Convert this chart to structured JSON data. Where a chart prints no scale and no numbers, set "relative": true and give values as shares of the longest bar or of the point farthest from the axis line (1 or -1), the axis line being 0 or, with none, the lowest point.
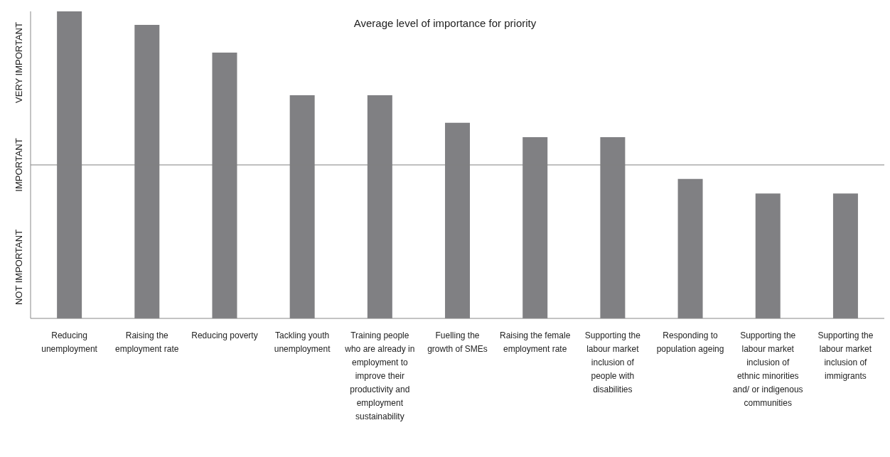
{
  "chart_data": {
    "type": "bar",
    "relative": true,
    "title": "Average level of importance for priority",
    "categories": [
      "Reducing unemployment",
      "Raising the employment rate",
      "Reducing poverty",
      "Tackling youth unemployment",
      "Training people who are already in employment to improve their productivity and employment sustainability",
      "Fuelling the growth of SMEs",
      "Raising the female employment rate",
      "Supporting the labour market inclusion of people with disabilities",
      "Responding to population ageing",
      "Supporting the labour market inclusion of ethnic minorities and/ or indigenous communities",
      "Supporting the labour market inclusion of immigrants"
    ],
    "values": [
      1,
      0.956,
      0.866,
      0.727,
      0.727,
      0.637,
      0.59,
      0.59,
      0.454,
      0.407,
      0.407
    ],
    "color": "#808083",
    "annotations": [
      "NOT IMPORTANT",
      "IMPORTANT",
      "VERY IMPORTANT"
    ],
    "ref_lines": [
      {
        "axis": "y",
        "value": 0.5,
        "color": "#808080"
      }
    ]
  }
}
